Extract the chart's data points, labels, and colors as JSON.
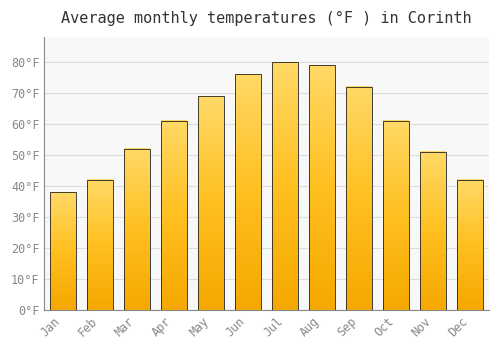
{
  "title": "Average monthly temperatures (°F ) in Corinth",
  "months": [
    "Jan",
    "Feb",
    "Mar",
    "Apr",
    "May",
    "Jun",
    "Jul",
    "Aug",
    "Sep",
    "Oct",
    "Nov",
    "Dec"
  ],
  "values": [
    38,
    42,
    52,
    61,
    69,
    76,
    80,
    79,
    72,
    61,
    51,
    42
  ],
  "bar_color_bottom": "#F5A800",
  "bar_color_top": "#FFD966",
  "bar_edge_color": "#222222",
  "ylim": [
    0,
    88
  ],
  "yticks": [
    0,
    10,
    20,
    30,
    40,
    50,
    60,
    70,
    80
  ],
  "ytick_labels": [
    "0°F",
    "10°F",
    "20°F",
    "30°F",
    "40°F",
    "50°F",
    "60°F",
    "70°F",
    "80°F"
  ],
  "background_color": "#FFFFFF",
  "plot_bg_color": "#F8F8F8",
  "grid_color": "#DDDDDD",
  "title_fontsize": 11,
  "tick_fontsize": 8.5,
  "tick_color": "#888888",
  "bar_width": 0.7
}
